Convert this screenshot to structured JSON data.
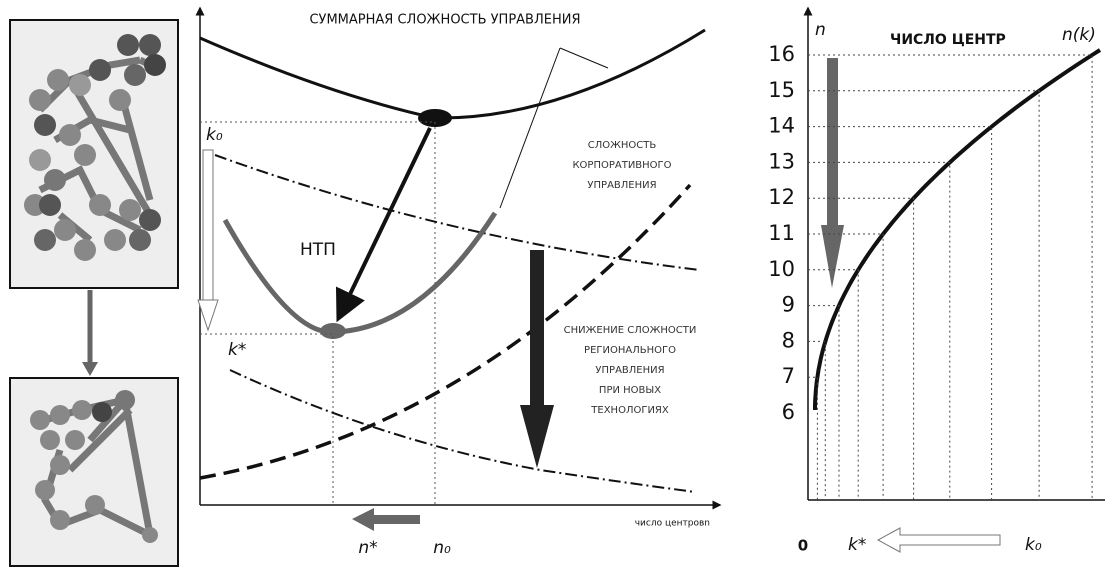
{
  "left_panel": {},
  "middle_panel": {
    "title": "СУММАРНАЯ СЛОЖНОСТЬ УПРАВЛЕНИЯ",
    "corporate_label": [
      "СЛОЖНОСТЬ",
      "КОРПОРАТИВНОГО",
      "УПРАВЛЕНИЯ"
    ],
    "ntp_label": "НТП",
    "k0_label": "k₀",
    "kstar_label": "k*",
    "reduction_label": [
      "СНИЖЕНИЕ СЛОЖНОСТИ",
      "РЕГИОНАЛЬНОГО",
      "УПРАВЛЕНИЯ",
      "ПРИ НОВЫХ",
      "ТЕХНОЛОГИЯХ"
    ],
    "nstar_label": "n*",
    "n0_label": "n₀",
    "x_axis_label": "число центровn"
  },
  "right_panel": {
    "y_axis_label": "n",
    "title": "ЧИСЛО ЦЕНТР",
    "curve_label": "n(k)",
    "levels": [
      16,
      15,
      14,
      13,
      12,
      11,
      10,
      9,
      8,
      7,
      6
    ],
    "origin_label": "0",
    "kstar_label": "k*",
    "k0_label": "k₀"
  }
}
